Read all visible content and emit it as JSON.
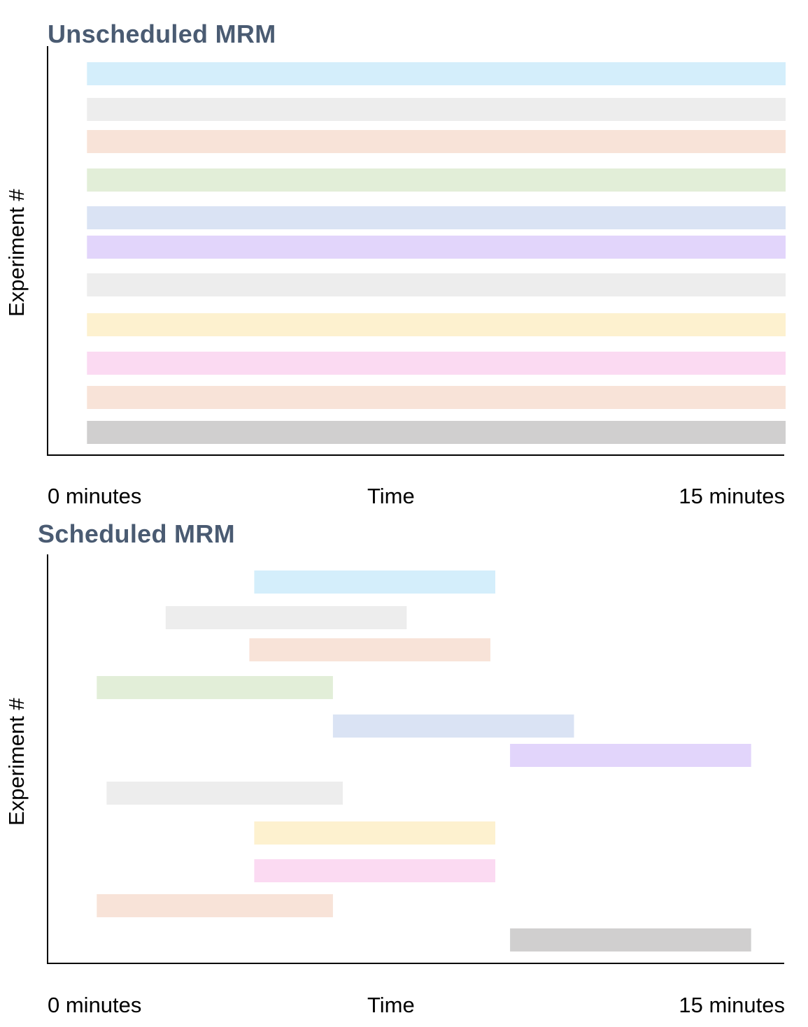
{
  "chart_data": [
    {
      "type": "gantt",
      "title": "Unscheduled MRM",
      "xlabel": "Time",
      "ylabel": "Experiment #",
      "x_tick_labels": [
        "0 minutes",
        "15 minutes"
      ],
      "xlim": [
        0,
        15
      ],
      "bars": [
        {
          "start": 0.8,
          "end": 15.0,
          "color": "#d4eefb"
        },
        {
          "start": 0.8,
          "end": 15.0,
          "color": "#ededed"
        },
        {
          "start": 0.8,
          "end": 15.0,
          "color": "#f8e3d8"
        },
        {
          "start": 0.8,
          "end": 15.0,
          "color": "#e2eed8"
        },
        {
          "start": 0.8,
          "end": 15.0,
          "color": "#dae3f4"
        },
        {
          "start": 0.8,
          "end": 15.0,
          "color": "#e2d5fb"
        },
        {
          "start": 0.8,
          "end": 15.0,
          "color": "#ededed"
        },
        {
          "start": 0.8,
          "end": 15.0,
          "color": "#fdf1cf"
        },
        {
          "start": 0.8,
          "end": 15.0,
          "color": "#fbdaf2"
        },
        {
          "start": 0.8,
          "end": 15.0,
          "color": "#f8e3d8"
        },
        {
          "start": 0.8,
          "end": 15.0,
          "color": "#d0cfcf"
        }
      ]
    },
    {
      "type": "gantt",
      "title": "Scheduled MRM",
      "xlabel": "Time",
      "ylabel": "Experiment #",
      "x_tick_labels": [
        "0 minutes",
        "15 minutes"
      ],
      "xlim": [
        0,
        15
      ],
      "bars": [
        {
          "start": 4.2,
          "end": 9.1,
          "color": "#d4eefb"
        },
        {
          "start": 2.4,
          "end": 7.3,
          "color": "#ededed"
        },
        {
          "start": 4.1,
          "end": 9.0,
          "color": "#f8e3d8"
        },
        {
          "start": 1.0,
          "end": 5.8,
          "color": "#e2eed8"
        },
        {
          "start": 5.8,
          "end": 10.7,
          "color": "#dae3f4"
        },
        {
          "start": 9.4,
          "end": 14.3,
          "color": "#e2d5fb"
        },
        {
          "start": 1.2,
          "end": 6.0,
          "color": "#ededed"
        },
        {
          "start": 4.2,
          "end": 9.1,
          "color": "#fdf1cf"
        },
        {
          "start": 4.2,
          "end": 9.1,
          "color": "#fbdaf2"
        },
        {
          "start": 1.0,
          "end": 5.8,
          "color": "#f8e3d8"
        },
        {
          "start": 9.4,
          "end": 14.3,
          "color": "#d0cfcf"
        }
      ]
    }
  ]
}
